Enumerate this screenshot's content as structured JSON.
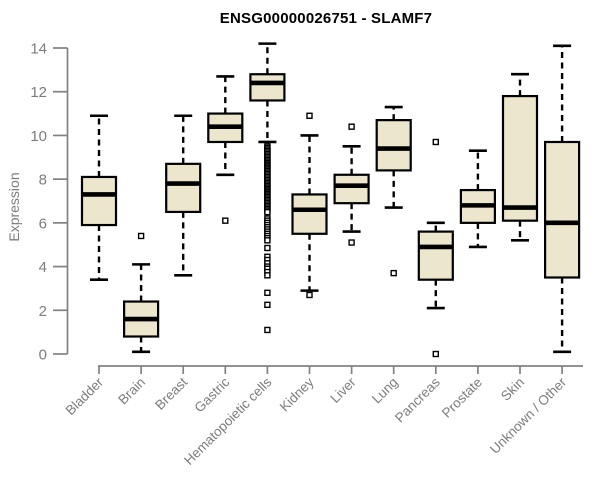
{
  "colors": {
    "box_fill": "#ece6cd",
    "box_stroke": "#000000",
    "median": "#000000",
    "whisker": "#000000",
    "outlier_stroke": "#000000",
    "outlier_fill": "#ffffff",
    "axis": "#828282",
    "tick_label": "#7d7d7d",
    "title": "#000000"
  },
  "chart_data": {
    "type": "boxplot",
    "title": "ENSG00000026751 - SLAMF7",
    "xlabel": "",
    "ylabel": "Expression",
    "ylim": [
      0,
      14
    ],
    "yticks": [
      0,
      2,
      4,
      6,
      8,
      10,
      12,
      14
    ],
    "grid": false,
    "legend": false,
    "categories": [
      "Bladder",
      "Brain",
      "Breast",
      "Gastric",
      "Hematopoietic cells",
      "Kidney",
      "Liver",
      "Lung",
      "Pancreas",
      "Prostate",
      "Skin",
      "Unknown / Other"
    ],
    "boxes": [
      {
        "category": "Bladder",
        "whisker_low": 3.4,
        "q1": 5.9,
        "median": 7.3,
        "q3": 8.1,
        "whisker_high": 10.9,
        "outliers": []
      },
      {
        "category": "Brain",
        "whisker_low": 0.1,
        "q1": 0.8,
        "median": 1.6,
        "q3": 2.4,
        "whisker_high": 4.1,
        "outliers": [
          5.4
        ]
      },
      {
        "category": "Breast",
        "whisker_low": 3.6,
        "q1": 6.5,
        "median": 7.8,
        "q3": 8.7,
        "whisker_high": 10.9,
        "outliers": []
      },
      {
        "category": "Gastric",
        "whisker_low": 8.2,
        "q1": 9.7,
        "median": 10.4,
        "q3": 11.0,
        "whisker_high": 12.7,
        "outliers": [
          6.1
        ]
      },
      {
        "category": "Hematopoietic cells",
        "whisker_low": 9.7,
        "q1": 11.6,
        "median": 12.4,
        "q3": 12.8,
        "whisker_high": 14.2,
        "outliers": [
          9.5,
          9.43,
          9.36,
          9.29,
          9.22,
          9.15,
          9.08,
          9.01,
          8.94,
          8.87,
          8.8,
          8.73,
          8.66,
          8.59,
          8.52,
          8.45,
          8.38,
          8.31,
          8.24,
          8.17,
          8.1,
          8.03,
          7.96,
          7.89,
          7.82,
          7.75,
          7.68,
          7.61,
          7.54,
          7.47,
          7.4,
          7.33,
          7.26,
          7.19,
          7.12,
          7.05,
          6.98,
          6.91,
          6.84,
          6.77,
          6.7,
          6.63,
          6.56,
          6.49,
          6.2,
          6.1,
          6.0,
          5.9,
          5.8,
          5.7,
          5.6,
          5.5,
          5.4,
          5.3,
          5.2,
          4.85,
          4.45,
          4.3,
          4.15,
          4.0,
          3.9,
          3.75,
          3.6,
          2.8,
          2.25,
          1.1
        ]
      },
      {
        "category": "Kidney",
        "whisker_low": 2.9,
        "q1": 5.5,
        "median": 6.6,
        "q3": 7.3,
        "whisker_high": 10.0,
        "outliers": [
          10.9,
          2.7
        ]
      },
      {
        "category": "Liver",
        "whisker_low": 5.6,
        "q1": 6.9,
        "median": 7.7,
        "q3": 8.2,
        "whisker_high": 9.5,
        "outliers": [
          10.4,
          5.1
        ]
      },
      {
        "category": "Lung",
        "whisker_low": 6.7,
        "q1": 8.4,
        "median": 9.4,
        "q3": 10.7,
        "whisker_high": 11.3,
        "outliers": [
          3.7
        ]
      },
      {
        "category": "Pancreas",
        "whisker_low": 2.1,
        "q1": 3.4,
        "median": 4.9,
        "q3": 5.6,
        "whisker_high": 6.0,
        "outliers": [
          9.7,
          0.0
        ]
      },
      {
        "category": "Prostate",
        "whisker_low": 4.9,
        "q1": 6.0,
        "median": 6.8,
        "q3": 7.5,
        "whisker_high": 9.3,
        "outliers": []
      },
      {
        "category": "Skin",
        "whisker_low": 5.2,
        "q1": 6.1,
        "median": 6.7,
        "q3": 11.8,
        "whisker_high": 12.8,
        "outliers": []
      },
      {
        "category": "Unknown / Other",
        "whisker_low": 0.1,
        "q1": 3.5,
        "median": 6.0,
        "q3": 9.7,
        "whisker_high": 14.1,
        "outliers": []
      }
    ]
  }
}
